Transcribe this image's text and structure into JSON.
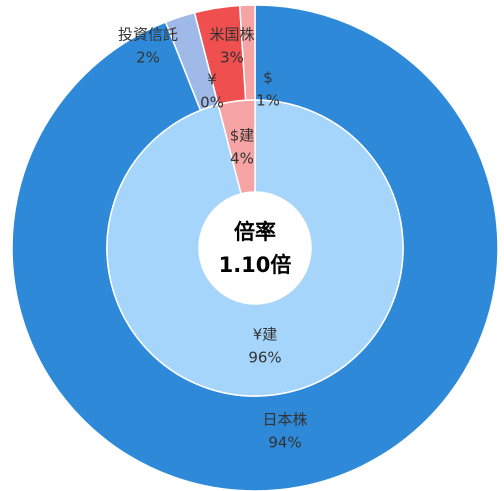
{
  "chart_data": {
    "type": "donut",
    "center_title": "倍率",
    "center_text": "1.10倍",
    "series": [
      {
        "categories": [
          "日本株",
          "投資信託",
          "¥",
          "米国株",
          "$"
        ],
        "values": [
          94,
          2,
          0,
          3,
          1
        ],
        "value_labels": [
          "94%",
          "2%",
          "0%",
          "3%",
          "1%"
        ],
        "colors": [
          "#2e8ad8",
          "#9fb9e9",
          "#9fb9e9",
          "#f04f4f",
          "#f5a3a3"
        ]
      },
      {
        "categories": [
          "¥建",
          "$建"
        ],
        "values": [
          96,
          4
        ],
        "value_labels": [
          "96%",
          "4%"
        ],
        "colors": [
          "#a6d5fb",
          "#f5a3a3"
        ]
      }
    ]
  }
}
